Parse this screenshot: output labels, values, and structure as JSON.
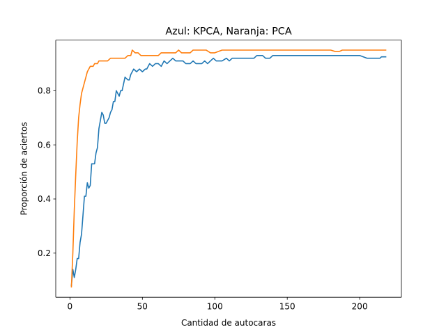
{
  "chart_data": {
    "type": "line",
    "title": "Azul: KPCA, Naranja: PCA",
    "xlabel": "Cantidad de autocaras",
    "ylabel": "Proporción de aciertos",
    "xlim": [
      -9.8,
      228.8
    ],
    "ylim": [
      0.037,
      0.987
    ],
    "xticks": [
      0,
      50,
      100,
      150,
      200
    ],
    "yticks": [
      0.2,
      0.4,
      0.6,
      0.8
    ],
    "ytick_labels": [
      "0.2",
      "0.4",
      "0.6",
      "0.8"
    ],
    "grid": false,
    "series": [
      {
        "color": "#1f77b4",
        "points": [
          [
            1,
            0.08
          ],
          [
            2,
            0.14
          ],
          [
            3,
            0.11
          ],
          [
            4,
            0.14
          ],
          [
            5,
            0.18
          ],
          [
            6,
            0.18
          ],
          [
            7,
            0.24
          ],
          [
            8,
            0.27
          ],
          [
            9,
            0.34
          ],
          [
            10,
            0.41
          ],
          [
            11,
            0.41
          ],
          [
            12,
            0.46
          ],
          [
            13,
            0.44
          ],
          [
            14,
            0.45
          ],
          [
            15,
            0.53
          ],
          [
            16,
            0.53
          ],
          [
            17,
            0.53
          ],
          [
            18,
            0.57
          ],
          [
            19,
            0.59
          ],
          [
            20,
            0.66
          ],
          [
            21,
            0.69
          ],
          [
            22,
            0.72
          ],
          [
            23,
            0.71
          ],
          [
            24,
            0.68
          ],
          [
            25,
            0.68
          ],
          [
            26,
            0.69
          ],
          [
            27,
            0.7
          ],
          [
            28,
            0.72
          ],
          [
            29,
            0.73
          ],
          [
            30,
            0.76
          ],
          [
            31,
            0.76
          ],
          [
            32,
            0.8
          ],
          [
            33,
            0.79
          ],
          [
            34,
            0.78
          ],
          [
            35,
            0.8
          ],
          [
            36,
            0.8
          ],
          [
            38,
            0.85
          ],
          [
            40,
            0.84
          ],
          [
            41,
            0.84
          ],
          [
            42,
            0.86
          ],
          [
            44,
            0.88
          ],
          [
            46,
            0.87
          ],
          [
            48,
            0.88
          ],
          [
            50,
            0.87
          ],
          [
            52,
            0.88
          ],
          [
            53,
            0.88
          ],
          [
            55,
            0.9
          ],
          [
            57,
            0.89
          ],
          [
            59,
            0.9
          ],
          [
            61,
            0.9
          ],
          [
            63,
            0.89
          ],
          [
            65,
            0.91
          ],
          [
            67,
            0.9
          ],
          [
            69,
            0.91
          ],
          [
            71,
            0.92
          ],
          [
            73,
            0.91
          ],
          [
            75,
            0.91
          ],
          [
            78,
            0.91
          ],
          [
            80,
            0.9
          ],
          [
            83,
            0.9
          ],
          [
            85,
            0.91
          ],
          [
            87,
            0.9
          ],
          [
            89,
            0.9
          ],
          [
            91,
            0.9
          ],
          [
            93,
            0.91
          ],
          [
            95,
            0.9
          ],
          [
            97,
            0.91
          ],
          [
            99,
            0.92
          ],
          [
            101,
            0.91
          ],
          [
            103,
            0.91
          ],
          [
            105,
            0.91
          ],
          [
            108,
            0.92
          ],
          [
            110,
            0.91
          ],
          [
            112,
            0.92
          ],
          [
            115,
            0.92
          ],
          [
            118,
            0.92
          ],
          [
            121,
            0.92
          ],
          [
            124,
            0.92
          ],
          [
            127,
            0.92
          ],
          [
            129,
            0.93
          ],
          [
            131,
            0.93
          ],
          [
            133,
            0.93
          ],
          [
            135,
            0.92
          ],
          [
            138,
            0.92
          ],
          [
            140,
            0.93
          ],
          [
            142,
            0.93
          ],
          [
            144,
            0.93
          ],
          [
            146,
            0.93
          ],
          [
            148,
            0.93
          ],
          [
            152,
            0.93
          ],
          [
            158,
            0.93
          ],
          [
            165,
            0.93
          ],
          [
            170,
            0.93
          ],
          [
            175,
            0.93
          ],
          [
            180,
            0.93
          ],
          [
            185,
            0.93
          ],
          [
            190,
            0.93
          ],
          [
            195,
            0.93
          ],
          [
            197,
            0.93
          ],
          [
            200,
            0.93
          ],
          [
            205,
            0.92
          ],
          [
            210,
            0.92
          ],
          [
            214,
            0.92
          ],
          [
            215,
            0.925
          ],
          [
            218,
            0.925
          ]
        ]
      },
      {
        "color": "#ff7f0e",
        "points": [
          [
            1,
            0.075
          ],
          [
            2,
            0.2
          ],
          [
            3,
            0.36
          ],
          [
            4,
            0.49
          ],
          [
            5,
            0.61
          ],
          [
            6,
            0.7
          ],
          [
            7,
            0.75
          ],
          [
            8,
            0.79
          ],
          [
            9,
            0.81
          ],
          [
            10,
            0.83
          ],
          [
            11,
            0.85
          ],
          [
            12,
            0.87
          ],
          [
            13,
            0.88
          ],
          [
            14,
            0.89
          ],
          [
            15,
            0.89
          ],
          [
            16,
            0.89
          ],
          [
            17,
            0.9
          ],
          [
            18,
            0.9
          ],
          [
            19,
            0.9
          ],
          [
            20,
            0.91
          ],
          [
            22,
            0.91
          ],
          [
            24,
            0.91
          ],
          [
            26,
            0.91
          ],
          [
            28,
            0.92
          ],
          [
            30,
            0.92
          ],
          [
            32,
            0.92
          ],
          [
            34,
            0.92
          ],
          [
            36,
            0.92
          ],
          [
            38,
            0.92
          ],
          [
            40,
            0.93
          ],
          [
            42,
            0.93
          ],
          [
            43,
            0.95
          ],
          [
            45,
            0.94
          ],
          [
            47,
            0.94
          ],
          [
            49,
            0.93
          ],
          [
            51,
            0.93
          ],
          [
            53,
            0.93
          ],
          [
            55,
            0.93
          ],
          [
            57,
            0.93
          ],
          [
            59,
            0.93
          ],
          [
            61,
            0.93
          ],
          [
            63,
            0.94
          ],
          [
            65,
            0.94
          ],
          [
            67,
            0.94
          ],
          [
            69,
            0.94
          ],
          [
            71,
            0.94
          ],
          [
            73,
            0.94
          ],
          [
            75,
            0.95
          ],
          [
            77,
            0.94
          ],
          [
            79,
            0.94
          ],
          [
            81,
            0.94
          ],
          [
            83,
            0.94
          ],
          [
            85,
            0.95
          ],
          [
            88,
            0.95
          ],
          [
            91,
            0.95
          ],
          [
            94,
            0.95
          ],
          [
            97,
            0.94
          ],
          [
            100,
            0.94
          ],
          [
            105,
            0.95
          ],
          [
            110,
            0.95
          ],
          [
            115,
            0.95
          ],
          [
            120,
            0.95
          ],
          [
            125,
            0.95
          ],
          [
            130,
            0.95
          ],
          [
            135,
            0.95
          ],
          [
            140,
            0.95
          ],
          [
            145,
            0.95
          ],
          [
            150,
            0.95
          ],
          [
            155,
            0.95
          ],
          [
            160,
            0.95
          ],
          [
            165,
            0.95
          ],
          [
            170,
            0.95
          ],
          [
            175,
            0.95
          ],
          [
            180,
            0.95
          ],
          [
            183,
            0.945
          ],
          [
            186,
            0.945
          ],
          [
            188,
            0.95
          ],
          [
            195,
            0.95
          ],
          [
            200,
            0.95
          ],
          [
            205,
            0.95
          ],
          [
            210,
            0.95
          ],
          [
            215,
            0.95
          ],
          [
            218,
            0.95
          ]
        ]
      }
    ]
  }
}
